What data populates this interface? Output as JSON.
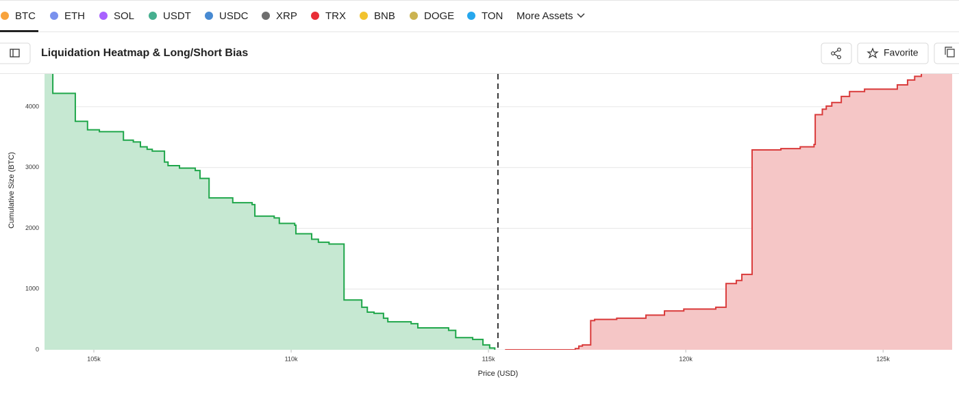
{
  "tabs": [
    "BTC",
    "ETH",
    "SOL",
    "USDT",
    "USDC",
    "XRP",
    "TRX",
    "BNB",
    "DOGE",
    "TON",
    "More Assets"
  ],
  "header": {
    "title": "Liquidation Heatmap & Long/Short Bias",
    "favorite": "Favorite"
  },
  "chart_data": {
    "type": "step-area",
    "x_label": "Price (USD)",
    "y_label": "Cumulative Size (BTC)",
    "xlim": [
      103750,
      126750
    ],
    "ylim": [
      0,
      4540
    ],
    "xticks": [
      {
        "value": 105000,
        "label": "105k"
      },
      {
        "value": 110000,
        "label": "110k"
      },
      {
        "value": 115000,
        "label": "115k"
      },
      {
        "value": 120000,
        "label": "120k"
      },
      {
        "value": 125000,
        "label": "125k"
      }
    ],
    "yticks": [
      0,
      1000,
      2000,
      3000,
      4000
    ],
    "grid": true,
    "reference_x": 115240,
    "series": [
      {
        "color": "#1fa64a",
        "fill": "#c6e8d2",
        "x": [
          103750,
          103960,
          104530,
          104840,
          105140,
          105750,
          106000,
          106180,
          106350,
          106480,
          106790,
          106880,
          107170,
          107570,
          107690,
          107920,
          108520,
          109010,
          109080,
          109570,
          109700,
          110090,
          110120,
          110520,
          110690,
          110960,
          111340,
          111790,
          111930,
          112100,
          112340,
          112450,
          113040,
          113210,
          113990,
          114170,
          114600,
          114860,
          115030,
          115160
        ],
        "values": [
          4700,
          4220,
          3760,
          3620,
          3590,
          3450,
          3420,
          3340,
          3300,
          3270,
          3090,
          3030,
          2990,
          2950,
          2820,
          2500,
          2420,
          2390,
          2200,
          2170,
          2080,
          2050,
          1910,
          1820,
          1770,
          1740,
          820,
          700,
          620,
          600,
          520,
          460,
          430,
          360,
          320,
          200,
          170,
          80,
          30,
          0
        ]
      },
      {
        "color": "#d93a3a",
        "fill": "#f5c6c6",
        "x": [
          115420,
          117200,
          117290,
          117380,
          117590,
          117690,
          118250,
          118990,
          119460,
          119950,
          120760,
          121020,
          121280,
          121420,
          121680,
          122410,
          122900,
          123250,
          123280,
          123460,
          123560,
          123700,
          123940,
          124150,
          124530,
          125360,
          125620,
          125800,
          125970
        ],
        "values": [
          0,
          20,
          60,
          80,
          480,
          500,
          520,
          570,
          640,
          670,
          700,
          1090,
          1140,
          1240,
          3290,
          3310,
          3340,
          3380,
          3870,
          3960,
          4010,
          4070,
          4170,
          4250,
          4290,
          4360,
          4440,
          4500,
          4700
        ]
      }
    ]
  }
}
